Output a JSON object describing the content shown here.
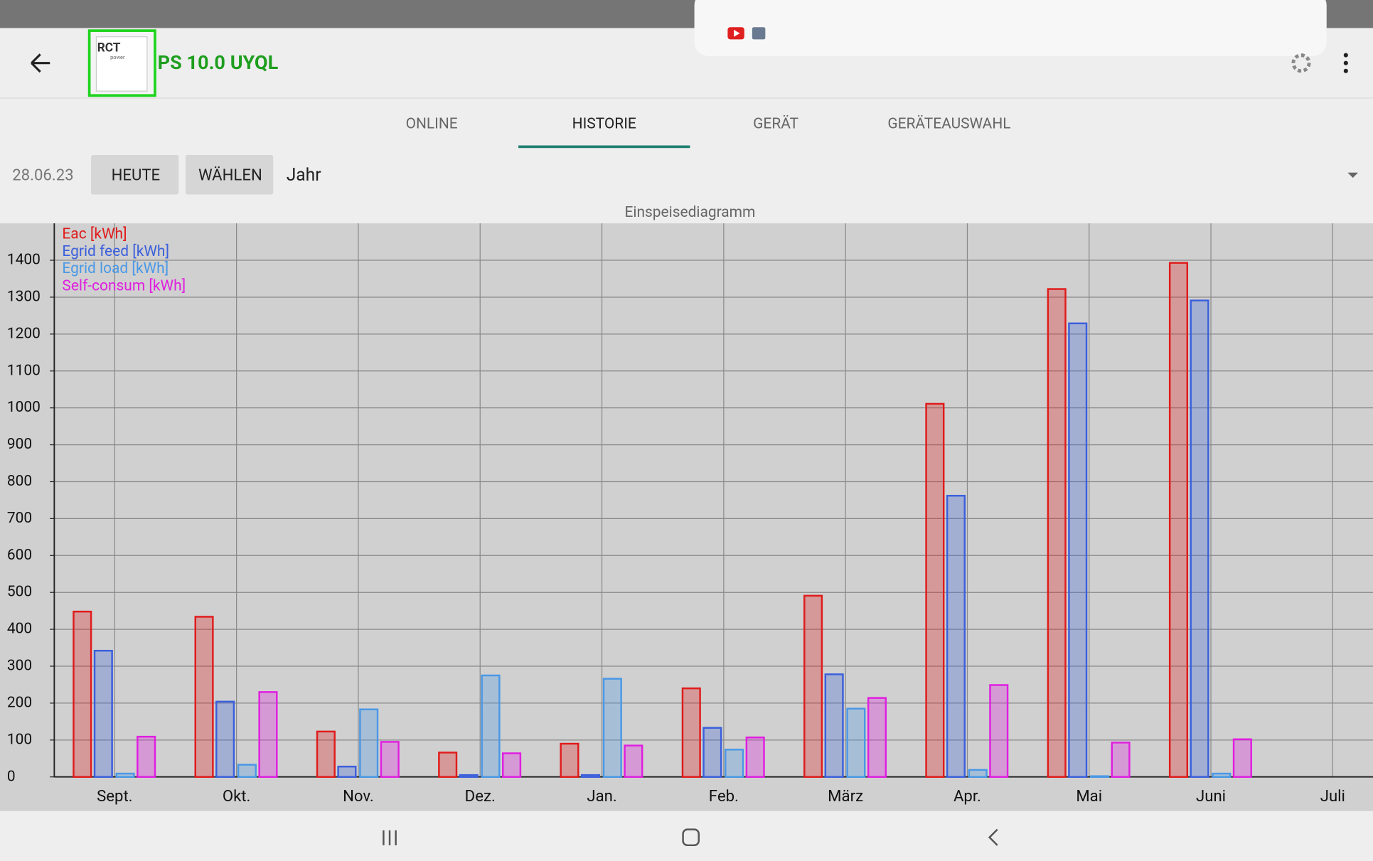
{
  "header": {
    "title": "PS 10.0 UYQL",
    "logo": [
      "RCT",
      "power"
    ]
  },
  "tabs": [
    "ONLINE",
    "HISTORIE",
    "GERÄT",
    "GERÄTEAUSWAHL"
  ],
  "active_tab": 1,
  "toolbar": {
    "date": "28.06.23",
    "buttons": [
      "HEUTE",
      "WÄHLEN"
    ],
    "period": "Jahr"
  },
  "chart_data": {
    "type": "bar",
    "title": "Einspeisediagramm",
    "categories": [
      "Sept.",
      "Okt.",
      "Nov.",
      "Dez.",
      "Jan.",
      "Feb.",
      "März",
      "Apr.",
      "Mai",
      "Juni",
      "Juli"
    ],
    "series": [
      {
        "name": "Eac [kWh]",
        "color": "#e01b1b",
        "values": [
          448,
          434,
          123,
          66,
          90,
          240,
          491,
          1011,
          1322,
          1393,
          null
        ]
      },
      {
        "name": "Egrid feed [kWh]",
        "color": "#3b5fdc",
        "values": [
          342,
          204,
          28,
          5,
          5,
          133,
          278,
          762,
          1229,
          1291,
          null
        ]
      },
      {
        "name": "Egrid load [kWh]",
        "color": "#4a98e6",
        "values": [
          9,
          33,
          183,
          275,
          266,
          74,
          185,
          19,
          2,
          9,
          null
        ]
      },
      {
        "name": "Self-consum [kWh]",
        "color": "#e01ee0",
        "values": [
          109,
          230,
          95,
          64,
          85,
          107,
          214,
          249,
          93,
          102,
          null
        ]
      }
    ],
    "ylim": [
      0,
      1500
    ],
    "yticks": [
      0,
      100,
      200,
      300,
      400,
      500,
      600,
      700,
      800,
      900,
      1000,
      1100,
      1200,
      1300,
      1400
    ],
    "grid": true,
    "legend": "top-left"
  }
}
